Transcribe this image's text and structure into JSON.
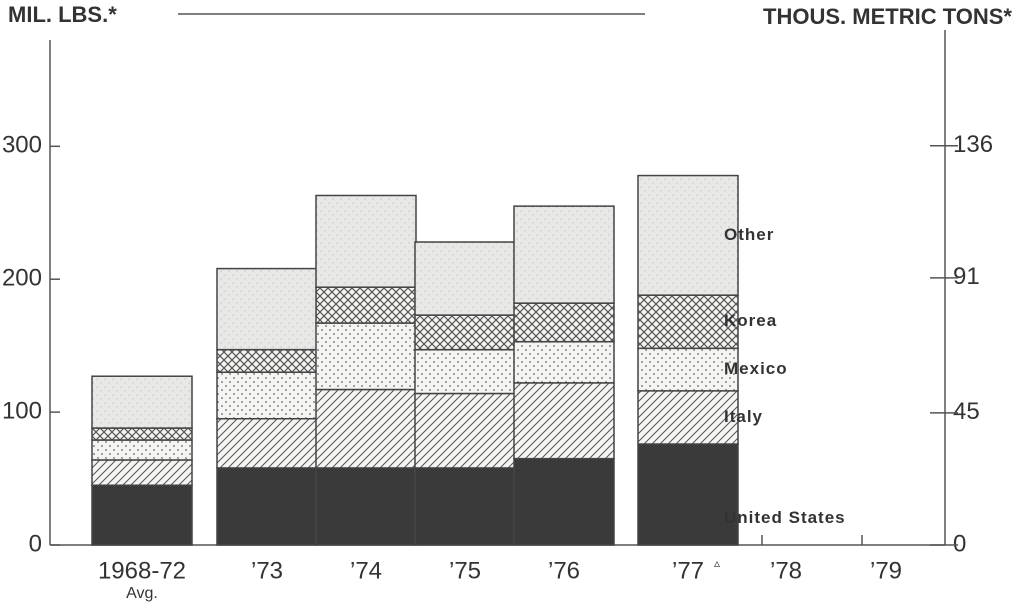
{
  "chart_data": {
    "type": "bar",
    "stacked": true,
    "y_label": "MIL. LBS.*",
    "y2_label": "THOUS. METRIC TONS*",
    "categories": [
      "1968-72",
      "’73",
      "’74",
      "’75",
      "’76",
      "’77",
      "’78",
      "’79"
    ],
    "category_note": "Avg.",
    "footnote_marker": "▵",
    "series": [
      {
        "name": "United States",
        "color": "#3a3a3a",
        "pattern": "solid",
        "values": [
          45,
          58,
          58,
          58,
          65,
          76,
          null,
          null
        ]
      },
      {
        "name": "Italy",
        "color": "#555555",
        "pattern": "hatch",
        "values": [
          19,
          37,
          59,
          56,
          57,
          40,
          null,
          null
        ]
      },
      {
        "name": "Mexico",
        "color": "#666666",
        "pattern": "dots",
        "values": [
          15,
          35,
          50,
          33,
          31,
          32,
          null,
          null
        ]
      },
      {
        "name": "Korea",
        "color": "#555555",
        "pattern": "cross",
        "values": [
          9,
          17,
          27,
          26,
          29,
          40,
          null,
          null
        ]
      },
      {
        "name": "Other",
        "color": "#9a9a9a",
        "pattern": "speckle",
        "values": [
          39,
          61,
          69,
          55,
          73,
          90,
          null,
          null
        ]
      }
    ],
    "ylim": [
      0,
      380
    ],
    "yticks": [
      0,
      100,
      200,
      300
    ],
    "y2lim": [
      0,
      172
    ],
    "y2ticks": [
      0,
      45,
      91,
      136
    ]
  }
}
